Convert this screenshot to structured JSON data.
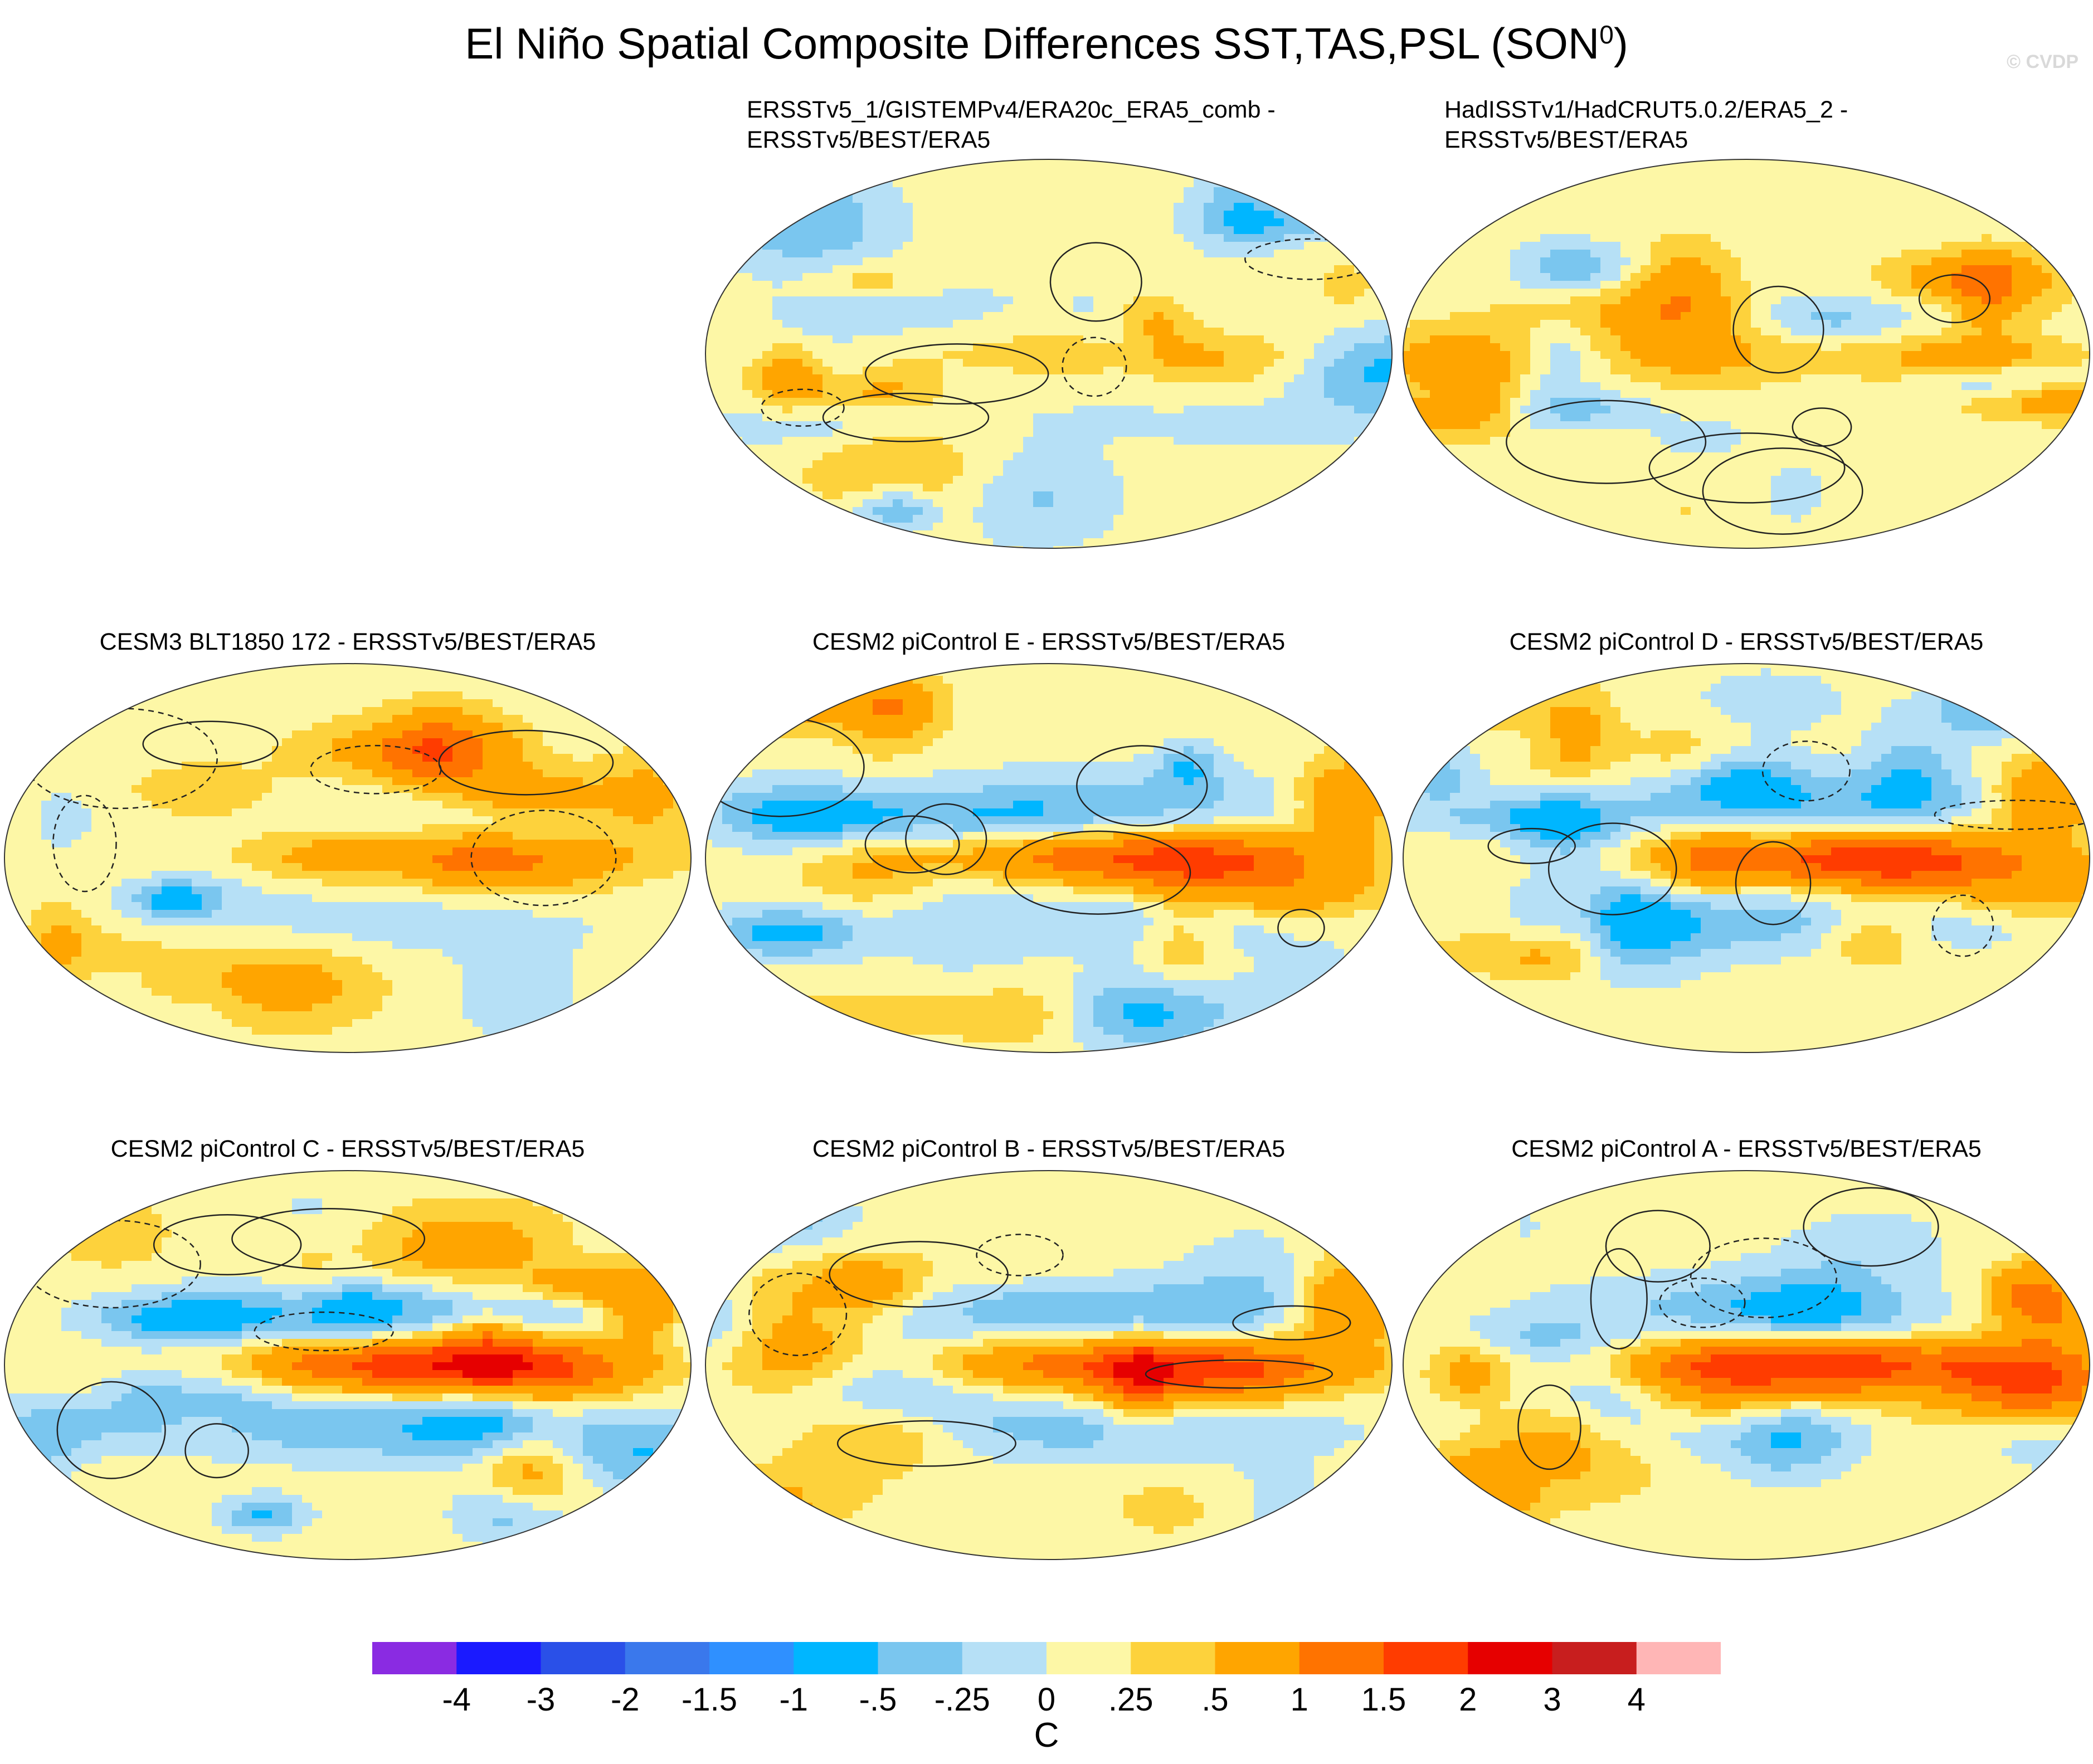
{
  "title": "El Niño Spatial Composite Differences SST,TAS,PSL (SON",
  "title_superscript": "0",
  "title_close": ")",
  "watermark": "© CVDP",
  "panels": [
    {
      "lines": [
        "ERSSTv5_1/GISTEMPv4/ERA20c_ERA5_comb -",
        "ERSSTv5/BEST/ERA5"
      ],
      "row": 0,
      "col": 1,
      "enso_strength": 0.3,
      "seed": 11
    },
    {
      "lines": [
        "HadISSTv1/HadCRUT5.0.2/ERA5_2 -",
        "ERSSTv5/BEST/ERA5"
      ],
      "row": 0,
      "col": 2,
      "enso_strength": 0.15,
      "seed": 23
    },
    {
      "lines": [
        "CESM3 BLT1850 172 - ERSSTv5/BEST/ERA5"
      ],
      "row": 1,
      "col": 0,
      "enso_strength": 0.7,
      "seed": 37
    },
    {
      "lines": [
        "CESM2 piControl E - ERSSTv5/BEST/ERA5"
      ],
      "row": 1,
      "col": 1,
      "enso_strength": 1.1,
      "seed": 41
    },
    {
      "lines": [
        "CESM2 piControl D - ERSSTv5/BEST/ERA5"
      ],
      "row": 1,
      "col": 2,
      "enso_strength": 1.2,
      "seed": 53
    },
    {
      "lines": [
        "CESM2 piControl C - ERSSTv5/BEST/ERA5"
      ],
      "row": 2,
      "col": 0,
      "enso_strength": 1.5,
      "seed": 67
    },
    {
      "lines": [
        "CESM2 piControl B - ERSSTv5/BEST/ERA5"
      ],
      "row": 2,
      "col": 1,
      "enso_strength": 1.3,
      "seed": 71
    },
    {
      "lines": [
        "CESM2 piControl A - ERSSTv5/BEST/ERA5"
      ],
      "row": 2,
      "col": 2,
      "enso_strength": 1.4,
      "seed": 83
    }
  ],
  "colorbar": {
    "colors": [
      "#8a2be2",
      "#1a1aff",
      "#2a50e8",
      "#3a78ec",
      "#2f90ff",
      "#00b6ff",
      "#7ac6ef",
      "#b6e0f6",
      "#fdf7a6",
      "#fdd23c",
      "#ffa500",
      "#ff7300",
      "#ff3c00",
      "#e60000",
      "#c81e1e",
      "#ffb6b6"
    ],
    "labels": [
      "-4",
      "-3",
      "-2",
      "-1.5",
      "-1",
      "-.5",
      "-.25",
      "0",
      ".25",
      ".5",
      "1",
      "1.5",
      "2",
      "3",
      "4"
    ],
    "levels": [
      -4,
      -3,
      -2,
      -1.5,
      -1,
      -0.5,
      -0.25,
      0,
      0.25,
      0.5,
      1,
      1.5,
      2,
      3,
      4
    ],
    "units": "C"
  }
}
